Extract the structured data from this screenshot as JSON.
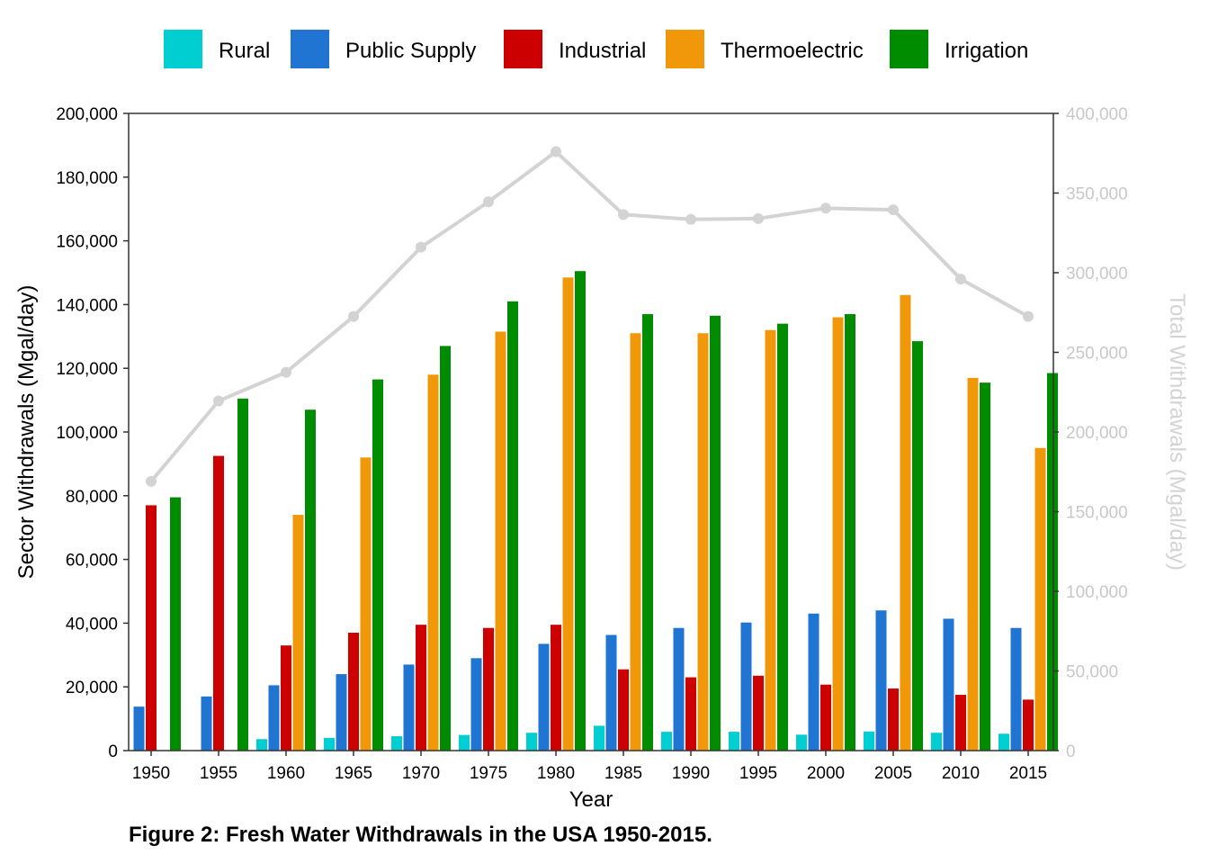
{
  "caption": "Figure 2: Fresh Water Withdrawals in the USA 1950-2015.",
  "chart_data": {
    "type": "bar",
    "title": "",
    "xlabel": "Year",
    "ylabel": "Sector Withdrawals (Mgal/day)",
    "y2label": "Total Withdrawals (Mgal/day)",
    "ylim": [
      0,
      200000
    ],
    "y2lim": [
      0,
      400000
    ],
    "yticks": [
      "0",
      "20,000",
      "40,000",
      "60,000",
      "80,000",
      "100,000",
      "120,000",
      "140,000",
      "160,000",
      "180,000",
      "200,000"
    ],
    "y2ticks": [
      "0",
      "50,000",
      "100,000",
      "150,000",
      "200,000",
      "250,000",
      "300,000",
      "350,000",
      "400,000"
    ],
    "legend_position": "top",
    "categories": [
      "1950",
      "1955",
      "1960",
      "1965",
      "1970",
      "1975",
      "1980",
      "1985",
      "1990",
      "1995",
      "2000",
      "2005",
      "2010",
      "2015"
    ],
    "series": [
      {
        "name": "Rural",
        "color": "#00CED1",
        "values": [
          null,
          null,
          3600,
          4000,
          4500,
          4900,
          5600,
          7800,
          5900,
          5900,
          5000,
          6000,
          5600,
          5300
        ]
      },
      {
        "name": "Public Supply",
        "color": "#1F75D1",
        "values": [
          13800,
          17000,
          20500,
          24000,
          27000,
          29000,
          33500,
          36300,
          38500,
          40200,
          43000,
          44000,
          41400,
          38500
        ]
      },
      {
        "name": "Industrial",
        "color": "#CC0000",
        "values": [
          77000,
          92500,
          33000,
          37000,
          39500,
          38500,
          39500,
          25500,
          23000,
          23500,
          20700,
          19500,
          17500,
          16000
        ]
      },
      {
        "name": "Thermoelectric",
        "color": "#F0980A",
        "values": [
          null,
          null,
          74000,
          92000,
          118000,
          131500,
          148500,
          131000,
          131000,
          132000,
          136000,
          143000,
          117000,
          95000
        ]
      },
      {
        "name": "Irrigation",
        "color": "#008C00",
        "values": [
          79500,
          110500,
          107000,
          116500,
          127000,
          141000,
          150500,
          137000,
          136500,
          134000,
          137000,
          128500,
          115500,
          118500
        ]
      }
    ],
    "total_series": {
      "axis": "right",
      "color": "#D3D3D3",
      "values": [
        169000,
        219500,
        237500,
        272500,
        316000,
        344500,
        376000,
        336500,
        333500,
        334000,
        340500,
        339500,
        296000,
        272500
      ]
    }
  }
}
